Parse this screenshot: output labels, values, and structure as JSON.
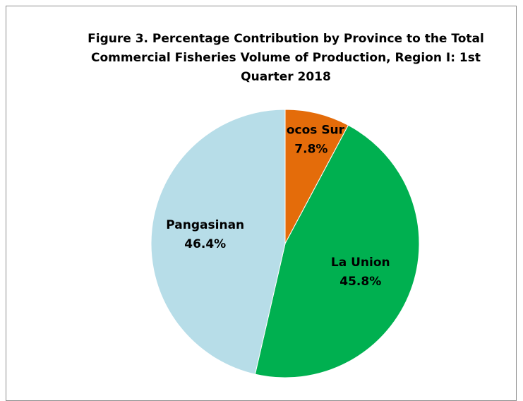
{
  "chart_data": {
    "type": "pie",
    "title": "Figure 3. Percentage Contribution by Province to the Total Commercial Fisheries Volume of Production, Region I: 1st Quarter 2018",
    "categories": [
      "Ilocos Sur",
      "La Union",
      "Pangasinan"
    ],
    "values": [
      7.8,
      45.8,
      46.4
    ],
    "value_labels": [
      "7.8%",
      "45.8%",
      "46.4%"
    ],
    "colors": [
      "#e46c0a",
      "#00b050",
      "#b7dde8"
    ]
  }
}
